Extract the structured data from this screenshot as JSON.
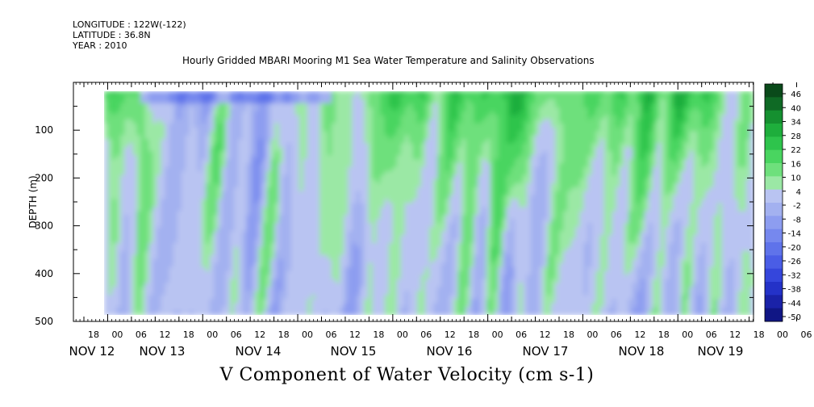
{
  "header": {
    "longitude": "LONGITUDE : 122W(-122)",
    "latitude": "LATITUDE : 36.8N",
    "year": "YEAR : 2010",
    "title": "Hourly Gridded MBARI Mooring M1 Sea Water Temperature and Salinity Observations"
  },
  "chart_data": {
    "type": "heatmap",
    "title": "Hourly Gridded MBARI Mooring M1 Sea Water Temperature and Salinity Observations",
    "xlabel": "V Component of Water Velocity (cm s-1)",
    "ylabel": "DEPTH (m)",
    "y_range": [
      0,
      500
    ],
    "y_inverted": true,
    "y_ticks": [
      100,
      200,
      300,
      400,
      500
    ],
    "x_hour_ticks": [
      "18",
      "00",
      "06",
      "12",
      "18",
      "00",
      "06",
      "12",
      "18",
      "00",
      "06",
      "12",
      "18",
      "00",
      "06",
      "12",
      "18",
      "00",
      "06",
      "12",
      "18",
      "00",
      "06",
      "12",
      "18",
      "00",
      "06",
      "12",
      "18",
      "00",
      "06",
      "12"
    ],
    "x_date_labels": [
      "NOV 12",
      "NOV 13",
      "NOV 14",
      "NOV 15",
      "NOV 16",
      "NOV 17",
      "NOV 18",
      "NOV 19"
    ],
    "data_extent": {
      "start": "NOV 12 21:00",
      "end": "NOV 19 12:00",
      "depth_min_m": 20,
      "depth_max_m": 490
    },
    "colorbar": {
      "levels": [
        "46",
        "40",
        "34",
        "28",
        "22",
        "16",
        "10",
        "4",
        "-2",
        "-8",
        "-14",
        "-20",
        "-26",
        "-32",
        "-38",
        "-44",
        "-50"
      ],
      "min": -50,
      "max": 52,
      "colors_high": [
        "#0a4a1a",
        "#0f6a25",
        "#159030",
        "#1eae3c",
        "#2ec44c",
        "#49d560",
        "#6ee07c",
        "#9be8a5"
      ],
      "colors_low": [
        "#b9c4f2",
        "#a3b1f0",
        "#8d9df0",
        "#7688ee",
        "#5f73ea",
        "#4a5de6",
        "#3546dc",
        "#2432c8",
        "#1a22a8",
        "#101685"
      ]
    },
    "pattern": {
      "surface_green_days": [
        "NOV 12 00",
        "NOV 16",
        "NOV 18",
        "NOV 19"
      ],
      "surface_blue_nov13_14": true
    }
  }
}
